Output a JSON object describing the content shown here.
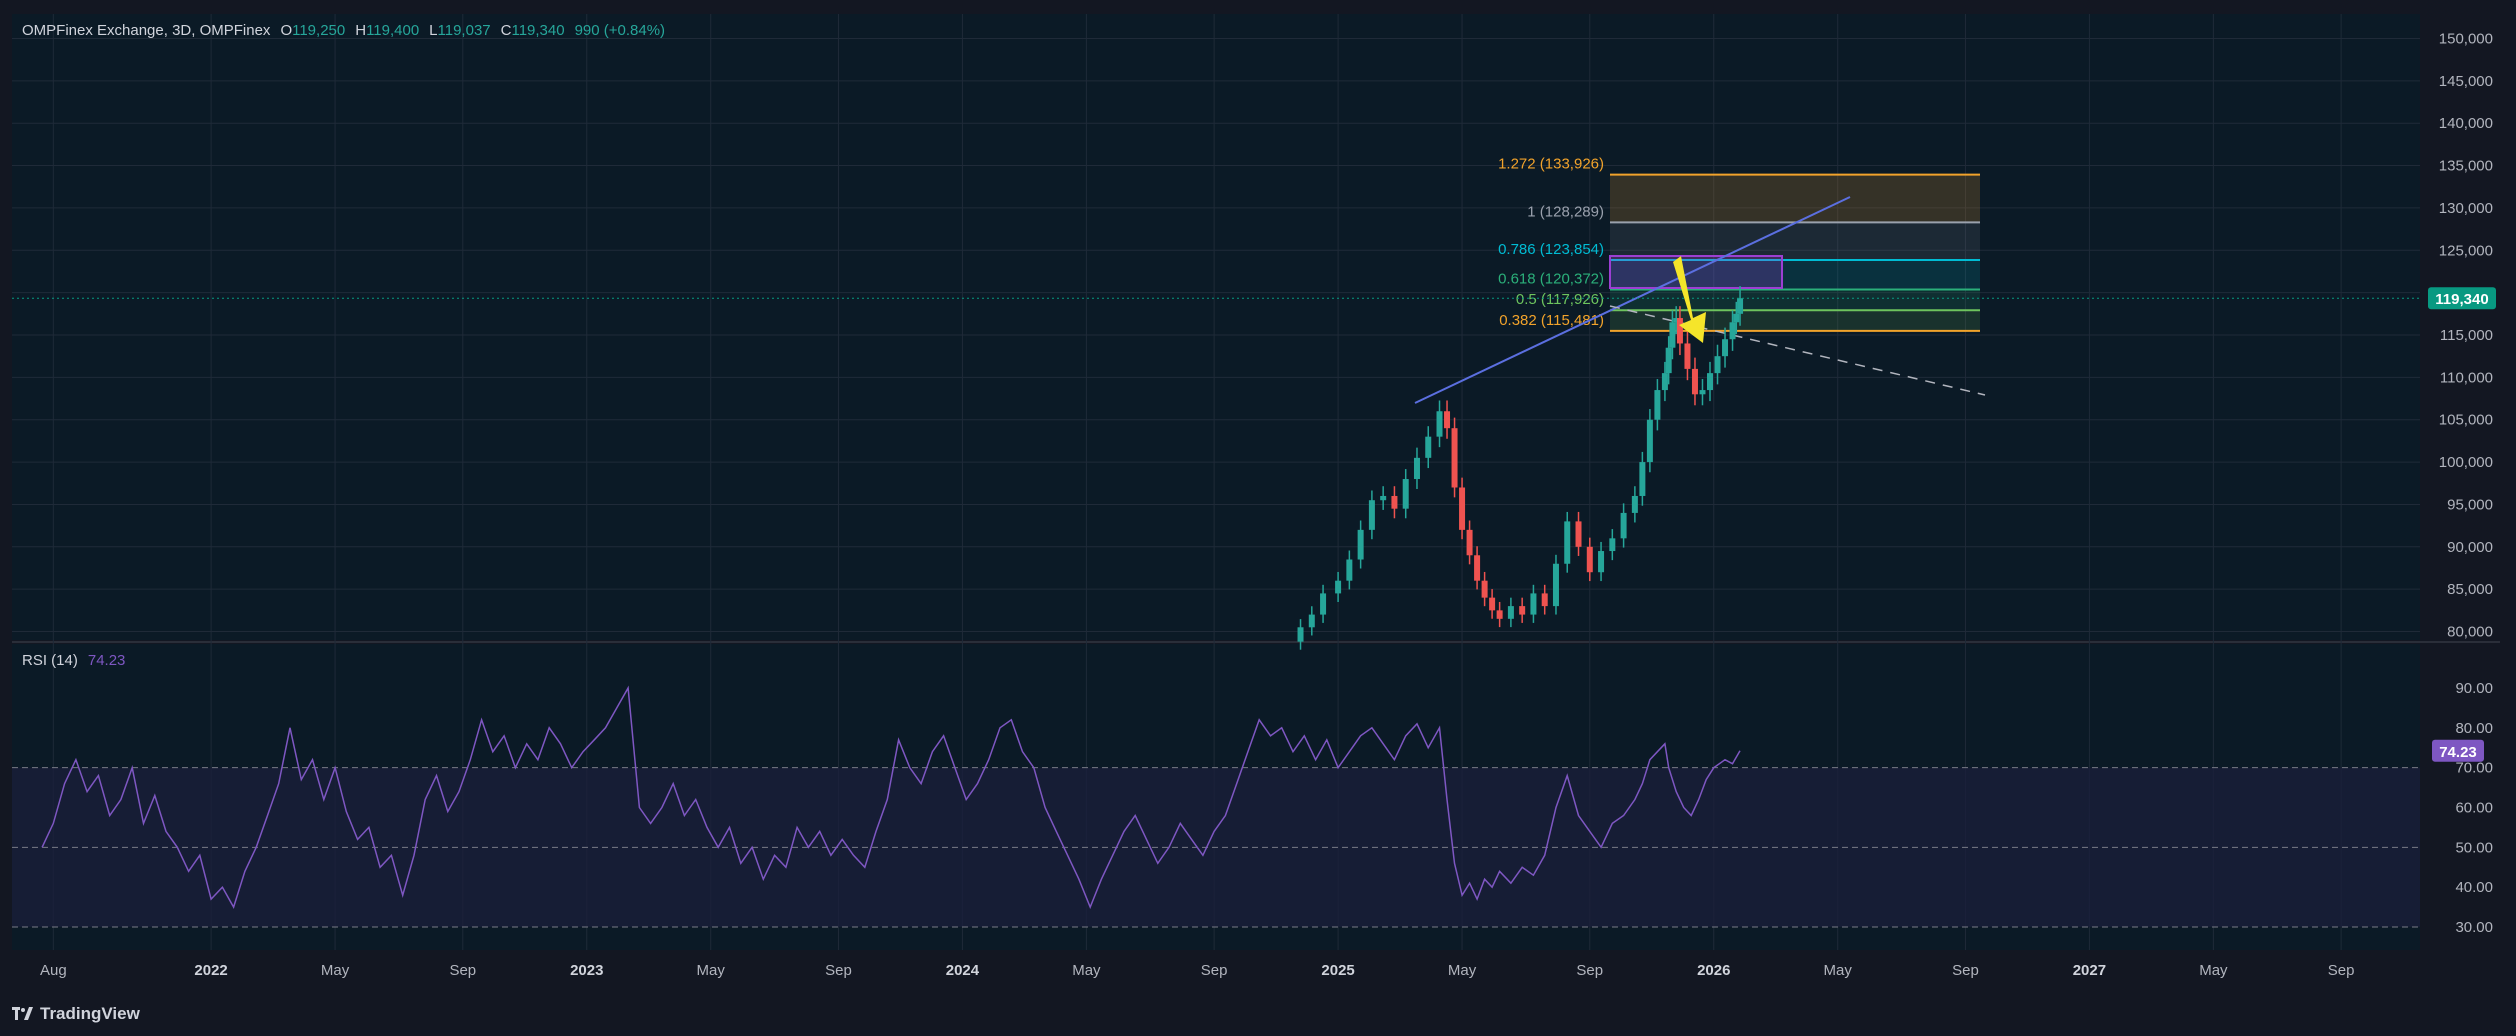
{
  "header": {
    "symbol": "OMPFinex Exchange, 3D, OMPFinex",
    "open_label": "O",
    "open": "119,250",
    "high_label": "H",
    "high": "119,400",
    "low_label": "L",
    "low": "119,037",
    "close_label": "C",
    "close": "119,340",
    "change": "990 (+0.84%)"
  },
  "rsi": {
    "label": "RSI (14)",
    "value": "74.23"
  },
  "brand": {
    "name": "TradingView"
  },
  "colors": {
    "background": "#131722",
    "pane": "#0b1a26",
    "grid": "#1f2a38",
    "up": "#26a69a",
    "down": "#ef5350",
    "rsi_line": "#7e57c2",
    "rsi_band": "#1b1f3b",
    "trendline": "#5b6fe0",
    "arrow": "#f5e52a",
    "box": "#9c3fd3",
    "price_tag": "#089981"
  },
  "chart_data": [
    {
      "type": "candlestick",
      "title": "OMPFinex Exchange, 3D, OMPFinex",
      "price_axis_ticks": [
        "150,000",
        "145,000",
        "140,000",
        "135,000",
        "130,000",
        "125,000",
        "120,000",
        "115,000",
        "110,000",
        "105,000",
        "100,000",
        "95,000",
        "90,000",
        "85,000",
        "80,000"
      ],
      "time_axis_labels": [
        "Aug",
        "2022",
        "May",
        "Sep",
        "2023",
        "May",
        "Sep",
        "2024",
        "May",
        "Sep",
        "2025",
        "May",
        "Sep",
        "2026",
        "May",
        "Sep",
        "2027",
        "May",
        "Sep"
      ],
      "ylim": [
        79000,
        151000
      ],
      "last_price": "119,340",
      "series_points": [
        [
          2024.87,
          78800
        ],
        [
          2024.9,
          80500
        ],
        [
          2024.93,
          82000
        ],
        [
          2024.96,
          84500
        ],
        [
          2025.0,
          86000
        ],
        [
          2025.03,
          88500
        ],
        [
          2025.06,
          92000
        ],
        [
          2025.09,
          95500
        ],
        [
          2025.12,
          96000
        ],
        [
          2025.15,
          94500
        ],
        [
          2025.18,
          98000
        ],
        [
          2025.21,
          100500
        ],
        [
          2025.24,
          103000
        ],
        [
          2025.27,
          106000
        ],
        [
          2025.29,
          104000
        ],
        [
          2025.31,
          97000
        ],
        [
          2025.33,
          92000
        ],
        [
          2025.35,
          89000
        ],
        [
          2025.37,
          86000
        ],
        [
          2025.39,
          84000
        ],
        [
          2025.41,
          82500
        ],
        [
          2025.43,
          81500
        ],
        [
          2025.46,
          83000
        ],
        [
          2025.49,
          82000
        ],
        [
          2025.52,
          84500
        ],
        [
          2025.55,
          83000
        ],
        [
          2025.58,
          88000
        ],
        [
          2025.61,
          93000
        ],
        [
          2025.64,
          90000
        ],
        [
          2025.67,
          87000
        ],
        [
          2025.7,
          89500
        ],
        [
          2025.73,
          91000
        ],
        [
          2025.76,
          94000
        ],
        [
          2025.79,
          96000
        ],
        [
          2025.81,
          100000
        ],
        [
          2025.83,
          105000
        ],
        [
          2025.85,
          108500
        ],
        [
          2025.87,
          110500
        ],
        [
          2025.88,
          113500
        ],
        [
          2025.89,
          116500
        ],
        [
          2025.9,
          117000
        ],
        [
          2025.91,
          114000
        ],
        [
          2025.93,
          111000
        ],
        [
          2025.95,
          108000
        ],
        [
          2025.97,
          108500
        ],
        [
          2025.99,
          110500
        ],
        [
          2026.01,
          112500
        ],
        [
          2026.03,
          114500
        ],
        [
          2026.05,
          116500
        ],
        [
          2026.06,
          117500
        ],
        [
          2026.07,
          119340
        ]
      ],
      "fib_levels": [
        {
          "label": "1.272 (133,926)",
          "value": 133926,
          "color": "#f2a32b"
        },
        {
          "label": "1 (128,289)",
          "value": 128289,
          "color": "#9aa1ad"
        },
        {
          "label": "0.786 (123,854)",
          "value": 123854,
          "color": "#00bcd4"
        },
        {
          "label": "0.618 (120,372)",
          "value": 120372,
          "color": "#2bb07a"
        },
        {
          "label": "0.5 (117,926)",
          "value": 117926,
          "color": "#6ec45e"
        },
        {
          "label": "0.382 (115,481)",
          "value": 115481,
          "color": "#f2a32b"
        }
      ]
    },
    {
      "type": "line",
      "title": "RSI (14)",
      "ticks": [
        "90.00",
        "80.00",
        "70.00",
        "60.00",
        "50.00",
        "40.00",
        "30.00"
      ],
      "ylim": [
        28,
        92
      ],
      "bands": [
        30,
        50,
        70
      ],
      "last_value": "74.23",
      "series_points": [
        [
          2021.55,
          50
        ],
        [
          2021.58,
          56
        ],
        [
          2021.61,
          66
        ],
        [
          2021.64,
          72
        ],
        [
          2021.67,
          64
        ],
        [
          2021.7,
          68
        ],
        [
          2021.73,
          58
        ],
        [
          2021.76,
          62
        ],
        [
          2021.79,
          70
        ],
        [
          2021.82,
          56
        ],
        [
          2021.85,
          63
        ],
        [
          2021.88,
          54
        ],
        [
          2021.91,
          50
        ],
        [
          2021.94,
          44
        ],
        [
          2021.97,
          48
        ],
        [
          2022.0,
          37
        ],
        [
          2022.03,
          40
        ],
        [
          2022.06,
          35
        ],
        [
          2022.09,
          44
        ],
        [
          2022.12,
          50
        ],
        [
          2022.15,
          58
        ],
        [
          2022.18,
          66
        ],
        [
          2022.21,
          80
        ],
        [
          2022.24,
          67
        ],
        [
          2022.27,
          72
        ],
        [
          2022.3,
          62
        ],
        [
          2022.33,
          70
        ],
        [
          2022.36,
          59
        ],
        [
          2022.39,
          52
        ],
        [
          2022.42,
          55
        ],
        [
          2022.45,
          45
        ],
        [
          2022.48,
          48
        ],
        [
          2022.51,
          38
        ],
        [
          2022.54,
          48
        ],
        [
          2022.57,
          62
        ],
        [
          2022.6,
          68
        ],
        [
          2022.63,
          59
        ],
        [
          2022.66,
          64
        ],
        [
          2022.69,
          72
        ],
        [
          2022.72,
          82
        ],
        [
          2022.75,
          74
        ],
        [
          2022.78,
          78
        ],
        [
          2022.81,
          70
        ],
        [
          2022.84,
          76
        ],
        [
          2022.87,
          72
        ],
        [
          2022.9,
          80
        ],
        [
          2022.93,
          76
        ],
        [
          2022.96,
          70
        ],
        [
          2022.99,
          74
        ],
        [
          2023.02,
          77
        ],
        [
          2023.05,
          80
        ],
        [
          2023.08,
          85
        ],
        [
          2023.11,
          90
        ],
        [
          2023.14,
          60
        ],
        [
          2023.17,
          56
        ],
        [
          2023.2,
          60
        ],
        [
          2023.23,
          66
        ],
        [
          2023.26,
          58
        ],
        [
          2023.29,
          62
        ],
        [
          2023.32,
          55
        ],
        [
          2023.35,
          50
        ],
        [
          2023.38,
          55
        ],
        [
          2023.41,
          46
        ],
        [
          2023.44,
          50
        ],
        [
          2023.47,
          42
        ],
        [
          2023.5,
          48
        ],
        [
          2023.53,
          45
        ],
        [
          2023.56,
          55
        ],
        [
          2023.59,
          50
        ],
        [
          2023.62,
          54
        ],
        [
          2023.65,
          48
        ],
        [
          2023.68,
          52
        ],
        [
          2023.71,
          48
        ],
        [
          2023.74,
          45
        ],
        [
          2023.77,
          54
        ],
        [
          2023.8,
          62
        ],
        [
          2023.83,
          77
        ],
        [
          2023.86,
          70
        ],
        [
          2023.89,
          66
        ],
        [
          2023.92,
          74
        ],
        [
          2023.95,
          78
        ],
        [
          2023.98,
          70
        ],
        [
          2024.01,
          62
        ],
        [
          2024.04,
          66
        ],
        [
          2024.07,
          72
        ],
        [
          2024.1,
          80
        ],
        [
          2024.13,
          82
        ],
        [
          2024.16,
          74
        ],
        [
          2024.19,
          70
        ],
        [
          2024.22,
          60
        ],
        [
          2024.25,
          54
        ],
        [
          2024.28,
          48
        ],
        [
          2024.31,
          42
        ],
        [
          2024.34,
          35
        ],
        [
          2024.37,
          42
        ],
        [
          2024.4,
          48
        ],
        [
          2024.43,
          54
        ],
        [
          2024.46,
          58
        ],
        [
          2024.49,
          52
        ],
        [
          2024.52,
          46
        ],
        [
          2024.55,
          50
        ],
        [
          2024.58,
          56
        ],
        [
          2024.61,
          52
        ],
        [
          2024.64,
          48
        ],
        [
          2024.67,
          54
        ],
        [
          2024.7,
          58
        ],
        [
          2024.73,
          66
        ],
        [
          2024.76,
          74
        ],
        [
          2024.79,
          82
        ],
        [
          2024.82,
          78
        ],
        [
          2024.85,
          80
        ],
        [
          2024.88,
          74
        ],
        [
          2024.91,
          78
        ],
        [
          2024.94,
          72
        ],
        [
          2024.97,
          77
        ],
        [
          2025.0,
          70
        ],
        [
          2025.03,
          74
        ],
        [
          2025.06,
          78
        ],
        [
          2025.09,
          80
        ],
        [
          2025.12,
          76
        ],
        [
          2025.15,
          72
        ],
        [
          2025.18,
          78
        ],
        [
          2025.21,
          81
        ],
        [
          2025.24,
          75
        ],
        [
          2025.27,
          80
        ],
        [
          2025.29,
          62
        ],
        [
          2025.31,
          46
        ],
        [
          2025.33,
          38
        ],
        [
          2025.35,
          41
        ],
        [
          2025.37,
          37
        ],
        [
          2025.39,
          42
        ],
        [
          2025.41,
          40
        ],
        [
          2025.43,
          44
        ],
        [
          2025.46,
          41
        ],
        [
          2025.49,
          45
        ],
        [
          2025.52,
          43
        ],
        [
          2025.55,
          48
        ],
        [
          2025.58,
          60
        ],
        [
          2025.61,
          68
        ],
        [
          2025.64,
          58
        ],
        [
          2025.67,
          54
        ],
        [
          2025.7,
          50
        ],
        [
          2025.73,
          56
        ],
        [
          2025.76,
          58
        ],
        [
          2025.79,
          62
        ],
        [
          2025.81,
          66
        ],
        [
          2025.83,
          72
        ],
        [
          2025.85,
          74
        ],
        [
          2025.87,
          76
        ],
        [
          2025.88,
          70
        ],
        [
          2025.9,
          64
        ],
        [
          2025.92,
          60
        ],
        [
          2025.94,
          58
        ],
        [
          2025.96,
          62
        ],
        [
          2025.98,
          67
        ],
        [
          2026.0,
          70
        ],
        [
          2026.03,
          72
        ],
        [
          2026.05,
          71
        ],
        [
          2026.07,
          74.23
        ]
      ]
    }
  ]
}
